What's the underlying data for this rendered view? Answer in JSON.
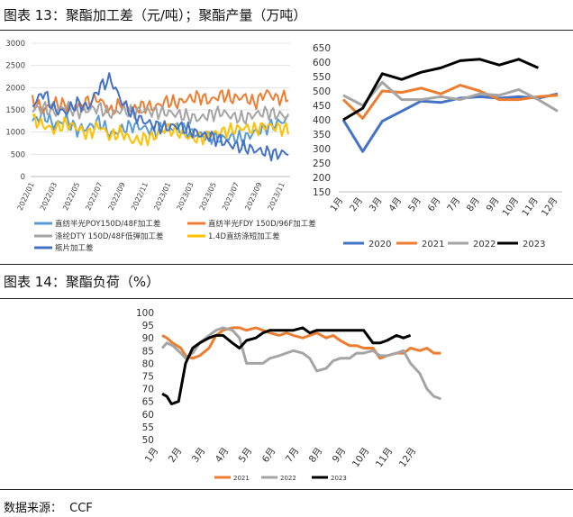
{
  "fig13_title": "图表 13：聚酯加工差（元/吨）；聚酯产量（万吨）",
  "fig14_title": "图表 14：聚酯负荷（%）",
  "source_label": "数据来源：",
  "source_value": "CCF",
  "chart_data": [
    {
      "id": "spread",
      "type": "line",
      "title": "聚酯加工差（元/吨）",
      "ylim": [
        0,
        3000
      ],
      "yticks": [
        0,
        500,
        1000,
        1500,
        2000,
        2500,
        3000
      ],
      "x_tick_labels": [
        "2022/01",
        "2022/03",
        "2022/05",
        "2022/07",
        "2022/09",
        "2022/11",
        "2023/01",
        "2023/03",
        "2023/05",
        "2023/07",
        "2023/09",
        "2023/11"
      ],
      "x_periods": 24,
      "series": [
        {
          "name": "直纺半光POY150D/48F加工差",
          "color": "#5b9bd5",
          "values": [
            1250,
            1400,
            1150,
            1300,
            1050,
            1100,
            1250,
            950,
            1050,
            1150,
            1100,
            1000,
            1100,
            1100,
            1000,
            950,
            900,
            850,
            900,
            850,
            1000,
            1100,
            1200,
            1300
          ]
        },
        {
          "name": "直纺半光FDY 150D/96F加工差",
          "color": "#ed7d31",
          "values": [
            1700,
            1500,
            1650,
            1600,
            1550,
            1700,
            1750,
            1450,
            1650,
            1500,
            1600,
            1550,
            1700,
            1650,
            1750,
            1800,
            1700,
            1850,
            1750,
            1800,
            1650,
            1900,
            1750,
            1800
          ]
        },
        {
          "name": "涤纶DTY 150D/48F低弹加工差",
          "color": "#a5a5a5",
          "values": [
            1500,
            1550,
            1450,
            1600,
            1450,
            1500,
            1550,
            1400,
            1500,
            1450,
            1500,
            1450,
            1450,
            1400,
            1350,
            1300,
            1400,
            1450,
            1350,
            1300,
            1400,
            1450,
            1400,
            1350
          ]
        },
        {
          "name": "1.4D直纺涤短加工差",
          "color": "#ffc000",
          "values": [
            1300,
            1150,
            1050,
            1200,
            1100,
            950,
            1150,
            900,
            1000,
            800,
            850,
            900,
            1100,
            1000,
            900,
            850,
            950,
            1000,
            1050,
            1100,
            1050,
            1150,
            1100,
            1050
          ]
        },
        {
          "name": "瓶片加工差",
          "color": "#4472c4",
          "values": [
            1600,
            1900,
            1500,
            1450,
            1650,
            1550,
            2000,
            2200,
            1700,
            1400,
            1250,
            1150,
            1100,
            1150,
            1050,
            950,
            900,
            800,
            700,
            650,
            600,
            550,
            500,
            550
          ]
        }
      ]
    },
    {
      "id": "output",
      "type": "line",
      "title": "聚酯产量（万吨）",
      "ylim": [
        150,
        650
      ],
      "yticks": [
        150,
        200,
        250,
        300,
        350,
        400,
        450,
        500,
        550,
        600,
        650
      ],
      "categories": [
        "1月",
        "2月",
        "3月",
        "4月",
        "5月",
        "6月",
        "7月",
        "8月",
        "9月",
        "10月",
        "11月",
        "12月"
      ],
      "series": [
        {
          "name": "2020",
          "color": "#4472c4",
          "values": [
            400,
            290,
            395,
            430,
            465,
            460,
            475,
            480,
            475,
            480,
            475,
            490
          ]
        },
        {
          "name": "2021",
          "color": "#ed7d31",
          "values": [
            470,
            405,
            500,
            495,
            510,
            490,
            520,
            500,
            470,
            470,
            480,
            485
          ]
        },
        {
          "name": "2022",
          "color": "#a5a5a5",
          "values": [
            485,
            450,
            530,
            470,
            470,
            480,
            470,
            490,
            485,
            505,
            470,
            430
          ]
        },
        {
          "name": "2023",
          "color": "#000000",
          "values": [
            400,
            440,
            560,
            540,
            565,
            580,
            605,
            610,
            590,
            610,
            580,
            null
          ]
        }
      ]
    },
    {
      "id": "load",
      "type": "line",
      "title": "聚酯负荷（%）",
      "ylim": [
        50,
        100
      ],
      "yticks": [
        50,
        55,
        60,
        65,
        70,
        75,
        80,
        85,
        90,
        95,
        100
      ],
      "categories": [
        "1月",
        "2月",
        "3月",
        "4月",
        "5月",
        "6月",
        "7月",
        "8月",
        "9月",
        "10月",
        "11月",
        "12月"
      ],
      "x_periods": 12,
      "series": [
        {
          "name": "2021",
          "color": "#ed7d31",
          "x": [
            0,
            0.2,
            0.45,
            0.8,
            1.0,
            1.3,
            1.6,
            2.0,
            2.3,
            2.6,
            3.0,
            3.3,
            3.6,
            4.0,
            4.3,
            4.6,
            5.0,
            5.3,
            5.6,
            6.0,
            6.3,
            6.6,
            7.0,
            7.3,
            7.6,
            8.0,
            8.3,
            8.6,
            9.0,
            9.3,
            9.6,
            10.0,
            10.3,
            10.6,
            11.0,
            11.3,
            11.6,
            11.9
          ],
          "values": [
            91,
            90,
            88,
            86,
            83,
            82,
            83,
            86,
            91,
            93,
            94,
            94,
            93,
            94,
            93,
            92,
            91,
            92,
            91,
            90,
            91,
            92,
            90,
            91,
            89,
            87,
            87,
            86,
            86,
            82,
            83,
            84,
            84,
            86,
            85,
            86,
            84,
            84
          ]
        },
        {
          "name": "2022",
          "color": "#a5a5a5",
          "x": [
            0,
            0.2,
            0.45,
            0.8,
            1.0,
            1.3,
            1.6,
            2.0,
            2.3,
            2.6,
            3.0,
            3.3,
            3.6,
            4.0,
            4.3,
            4.6,
            5.0,
            5.3,
            5.6,
            6.0,
            6.3,
            6.6,
            7.0,
            7.3,
            7.6,
            8.0,
            8.3,
            8.6,
            9.0,
            9.3,
            9.6,
            10.0,
            10.3,
            10.6,
            11.0,
            11.3,
            11.6,
            11.9
          ],
          "values": [
            86,
            88,
            87,
            84,
            82,
            84,
            88,
            91,
            93,
            94,
            93,
            90,
            80,
            80,
            80,
            82,
            83,
            84,
            85,
            84,
            82,
            77,
            78,
            81,
            82,
            82,
            84,
            84,
            85,
            83,
            83,
            84,
            85,
            80,
            76,
            70,
            67,
            66
          ]
        },
        {
          "name": "2023",
          "color": "#000000",
          "x": [
            0,
            0.2,
            0.4,
            0.7,
            1.0,
            1.3,
            1.6,
            2.0,
            2.3,
            2.6,
            3.0,
            3.3,
            3.6,
            4.0,
            4.3,
            4.6,
            5.0,
            5.3,
            5.6,
            6.0,
            6.3,
            6.6,
            7.0,
            7.3,
            7.6,
            8.0,
            8.3,
            8.6,
            9.0,
            9.3,
            9.6,
            10.0,
            10.3,
            10.6
          ],
          "values": [
            68,
            67,
            64,
            65,
            80,
            86,
            88,
            90,
            91,
            91,
            88,
            86,
            89,
            90,
            92,
            93,
            93,
            93,
            93,
            94,
            92,
            93,
            93,
            93,
            93,
            93,
            93,
            93,
            88,
            88,
            89,
            91,
            90,
            91
          ]
        }
      ]
    }
  ]
}
